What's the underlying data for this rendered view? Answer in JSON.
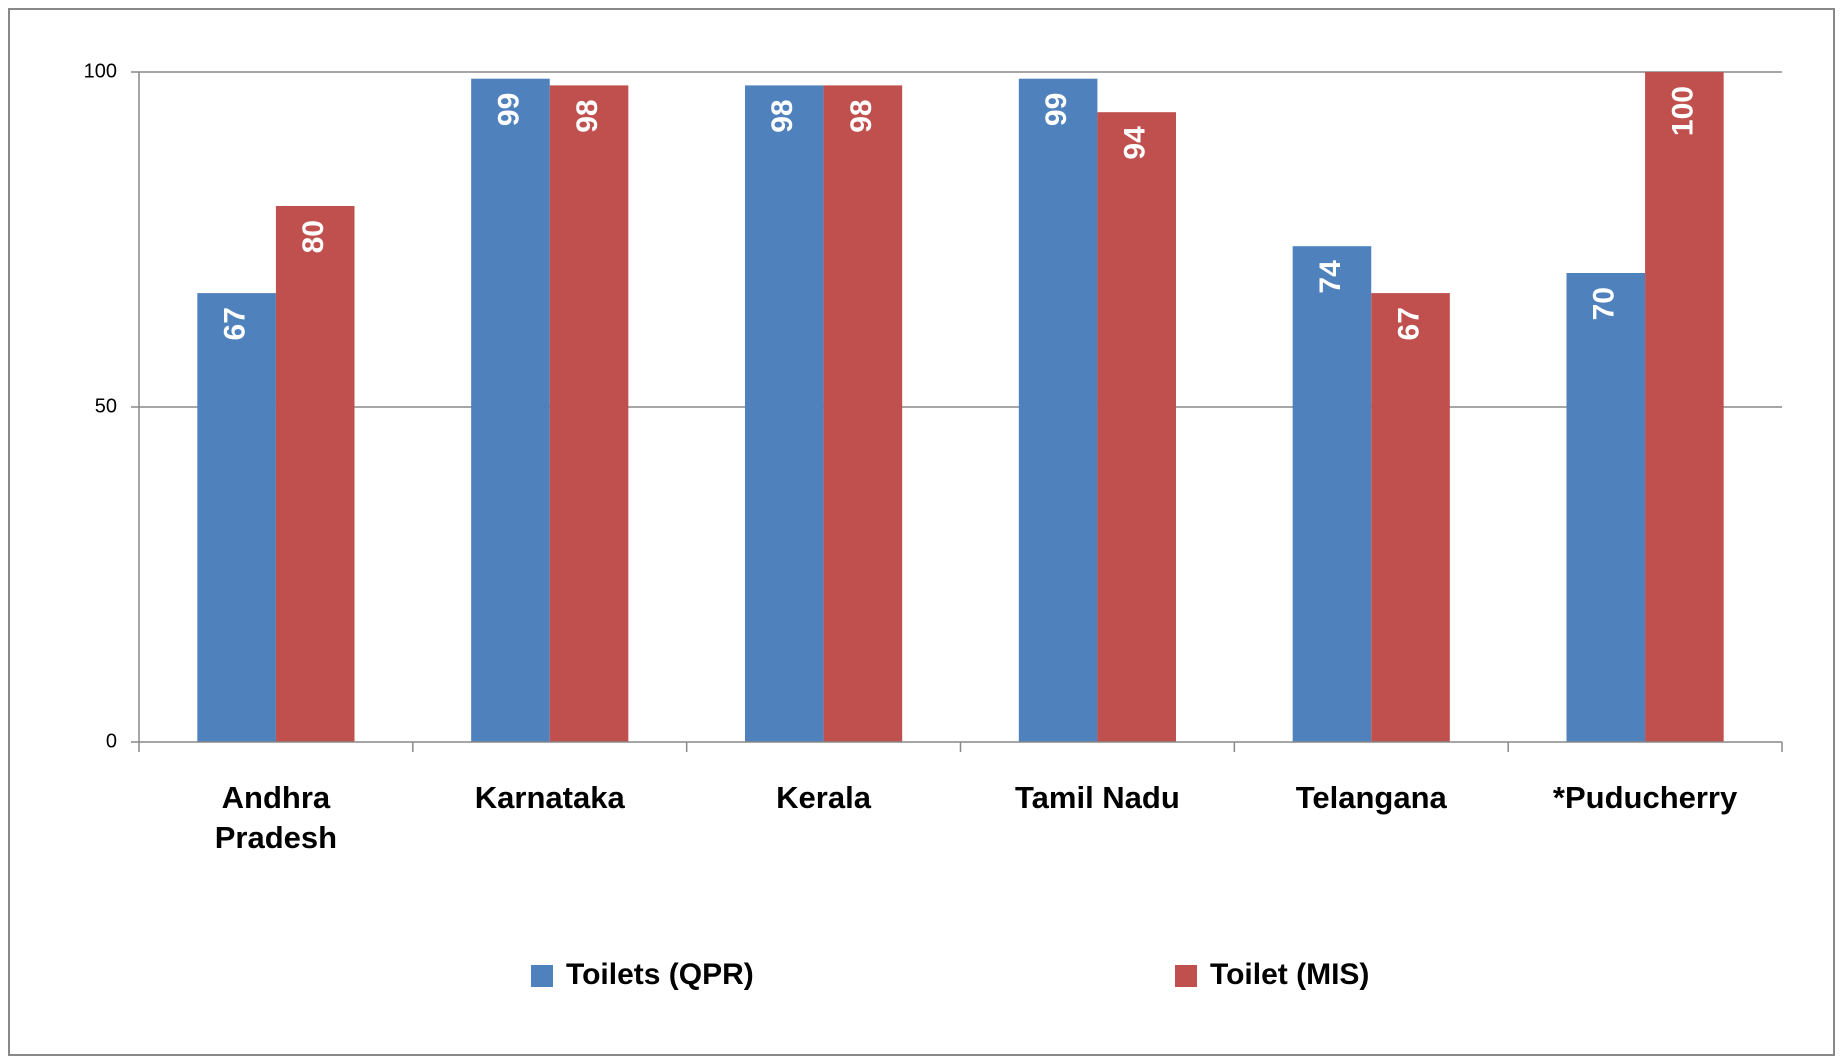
{
  "chart_data": {
    "type": "bar",
    "categories": [
      "Andhra Pradesh",
      "Karnataka",
      "Kerala",
      "Tamil Nadu",
      "Telangana",
      "*Puducherry"
    ],
    "series": [
      {
        "name": "Toilets (QPR)",
        "color": "#4f81bd",
        "values": [
          67,
          99,
          98,
          99,
          74,
          70
        ]
      },
      {
        "name": "Toilet (MIS)",
        "color": "#c0504d",
        "values": [
          80,
          98,
          98,
          94,
          67,
          100
        ]
      }
    ],
    "ylim": [
      0,
      100
    ],
    "yticks": [
      0,
      50,
      100
    ],
    "grid": true,
    "legend": "bottom"
  }
}
